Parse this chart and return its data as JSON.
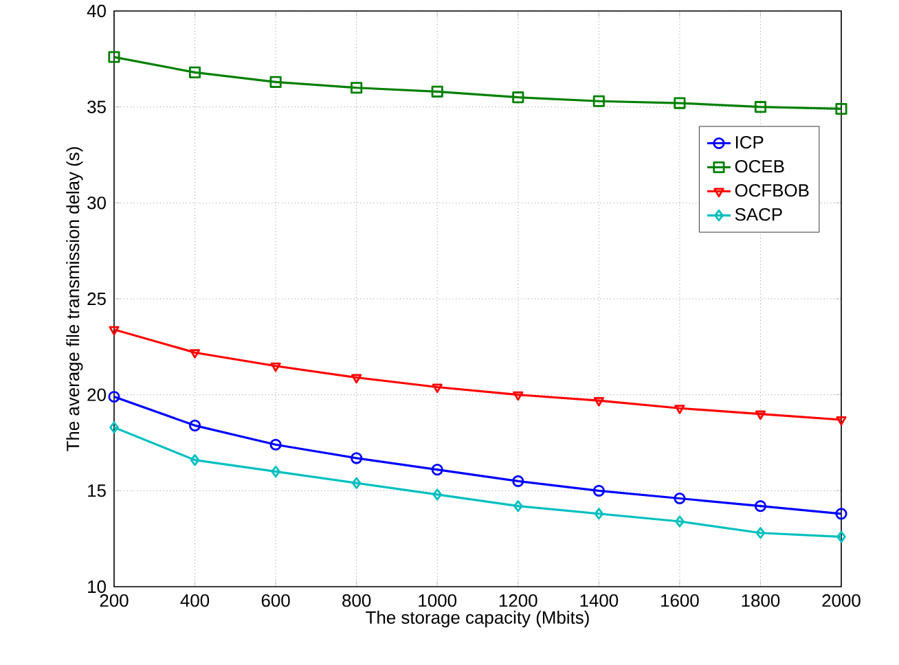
{
  "chart_data": {
    "type": "line",
    "xlabel": "The storage capacity (Mbits)",
    "ylabel": "The average file transmission delay (s)",
    "x": [
      200,
      400,
      600,
      800,
      1000,
      1200,
      1400,
      1600,
      1800,
      2000
    ],
    "series": [
      {
        "name": "ICP",
        "color": "#0000ff",
        "marker": "circle",
        "values": [
          19.9,
          18.4,
          17.4,
          16.7,
          16.1,
          15.5,
          15.0,
          14.6,
          14.2,
          13.8
        ]
      },
      {
        "name": "OCEB",
        "color": "#008000",
        "marker": "square",
        "values": [
          37.6,
          36.8,
          36.3,
          36.0,
          35.8,
          35.5,
          35.3,
          35.2,
          35.0,
          34.9
        ]
      },
      {
        "name": "OCFBOB",
        "color": "#ff0000",
        "marker": "triangle",
        "values": [
          23.4,
          22.2,
          21.5,
          20.9,
          20.4,
          20.0,
          19.7,
          19.3,
          19.0,
          18.7
        ]
      },
      {
        "name": "SACP",
        "color": "#00bfbf",
        "marker": "diamond",
        "values": [
          18.3,
          16.6,
          16.0,
          15.4,
          14.8,
          14.2,
          13.8,
          13.4,
          12.8,
          12.6
        ]
      }
    ],
    "xlim": [
      200,
      2000
    ],
    "ylim": [
      10,
      40
    ],
    "xticks": [
      200,
      400,
      600,
      800,
      1000,
      1200,
      1400,
      1600,
      1800,
      2000
    ],
    "yticks": [
      10,
      15,
      20,
      25,
      30,
      35,
      40
    ],
    "grid": true,
    "legend": "right",
    "line_style": "solid"
  }
}
